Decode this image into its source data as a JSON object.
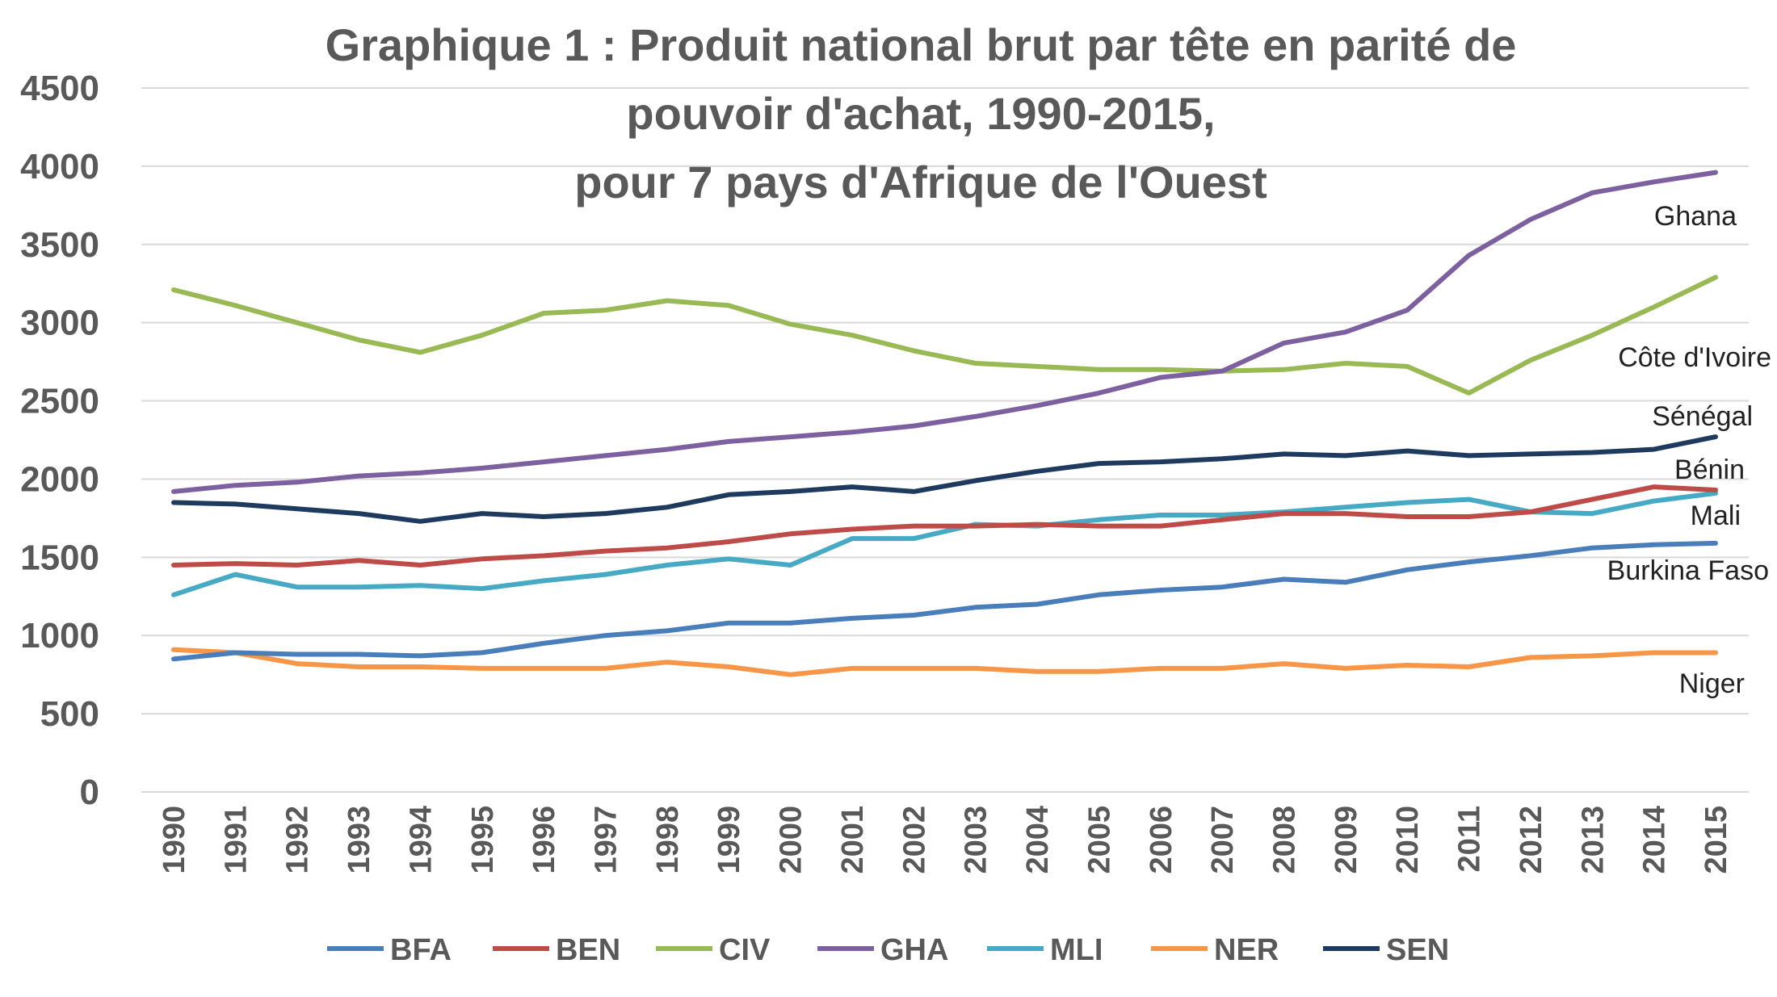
{
  "chart_data": {
    "type": "line",
    "title_lines": [
      "Graphique 1 : Produit national brut par tête en parité de",
      "pouvoir d'achat, 1990-2015,",
      "pour 7 pays d'Afrique de l'Ouest"
    ],
    "xlabel": "",
    "ylabel": "",
    "ylim": [
      0,
      4500
    ],
    "yticks": [
      0,
      500,
      1000,
      1500,
      2000,
      2500,
      3000,
      3500,
      4000,
      4500
    ],
    "grid": true,
    "legend_position": "bottom",
    "x": [
      "1990",
      "1991",
      "1992",
      "1993",
      "1994",
      "1995",
      "1996",
      "1997",
      "1998",
      "1999",
      "2000",
      "2001",
      "2002",
      "2003",
      "2004",
      "2005",
      "2006",
      "2007",
      "2008",
      "2009",
      "2010",
      "2011",
      "2012",
      "2013",
      "2014",
      "2015"
    ],
    "series": [
      {
        "name": "BFA",
        "label": "Burkina Faso",
        "color": "#4a7ebb",
        "values": [
          850,
          890,
          880,
          880,
          870,
          890,
          950,
          1000,
          1030,
          1080,
          1080,
          1110,
          1130,
          1180,
          1200,
          1260,
          1290,
          1310,
          1360,
          1340,
          1420,
          1470,
          1510,
          1560,
          1580,
          1590
        ]
      },
      {
        "name": "BEN",
        "label": "Bénin",
        "color": "#be4b48",
        "values": [
          1450,
          1460,
          1450,
          1480,
          1450,
          1490,
          1510,
          1540,
          1560,
          1600,
          1650,
          1680,
          1700,
          1700,
          1710,
          1700,
          1700,
          1740,
          1780,
          1780,
          1760,
          1760,
          1790,
          1870,
          1950,
          1930
        ]
      },
      {
        "name": "CIV",
        "label": "Côte d'Ivoire",
        "color": "#98b954",
        "values": [
          3210,
          3110,
          3000,
          2890,
          2810,
          2920,
          3060,
          3080,
          3140,
          3110,
          2990,
          2920,
          2820,
          2740,
          2720,
          2700,
          2700,
          2690,
          2700,
          2740,
          2720,
          2550,
          2760,
          2920,
          3100,
          3290
        ]
      },
      {
        "name": "GHA",
        "label": "Ghana",
        "color": "#7d60a0",
        "values": [
          1920,
          1960,
          1980,
          2020,
          2040,
          2070,
          2110,
          2150,
          2190,
          2240,
          2270,
          2300,
          2340,
          2400,
          2470,
          2550,
          2650,
          2690,
          2870,
          2940,
          3080,
          3430,
          3660,
          3830,
          3900,
          3960
        ]
      },
      {
        "name": "MLI",
        "label": "Mali",
        "color": "#46aac5",
        "values": [
          1260,
          1390,
          1310,
          1310,
          1320,
          1300,
          1350,
          1390,
          1450,
          1490,
          1450,
          1620,
          1620,
          1710,
          1700,
          1740,
          1770,
          1770,
          1790,
          1820,
          1850,
          1870,
          1790,
          1780,
          1860,
          1910
        ]
      },
      {
        "name": "NER",
        "label": "Niger",
        "color": "#f79646",
        "values": [
          910,
          890,
          820,
          800,
          800,
          790,
          790,
          790,
          830,
          800,
          750,
          790,
          790,
          790,
          770,
          770,
          790,
          790,
          820,
          790,
          810,
          800,
          860,
          870,
          890,
          890
        ]
      },
      {
        "name": "SEN",
        "label": "Sénégal",
        "color": "#1f3a5f",
        "values": [
          1850,
          1840,
          1810,
          1780,
          1730,
          1780,
          1760,
          1780,
          1820,
          1900,
          1920,
          1950,
          1920,
          1990,
          2050,
          2100,
          2110,
          2130,
          2160,
          2150,
          2180,
          2150,
          2160,
          2170,
          2190,
          2270
        ]
      }
    ]
  }
}
